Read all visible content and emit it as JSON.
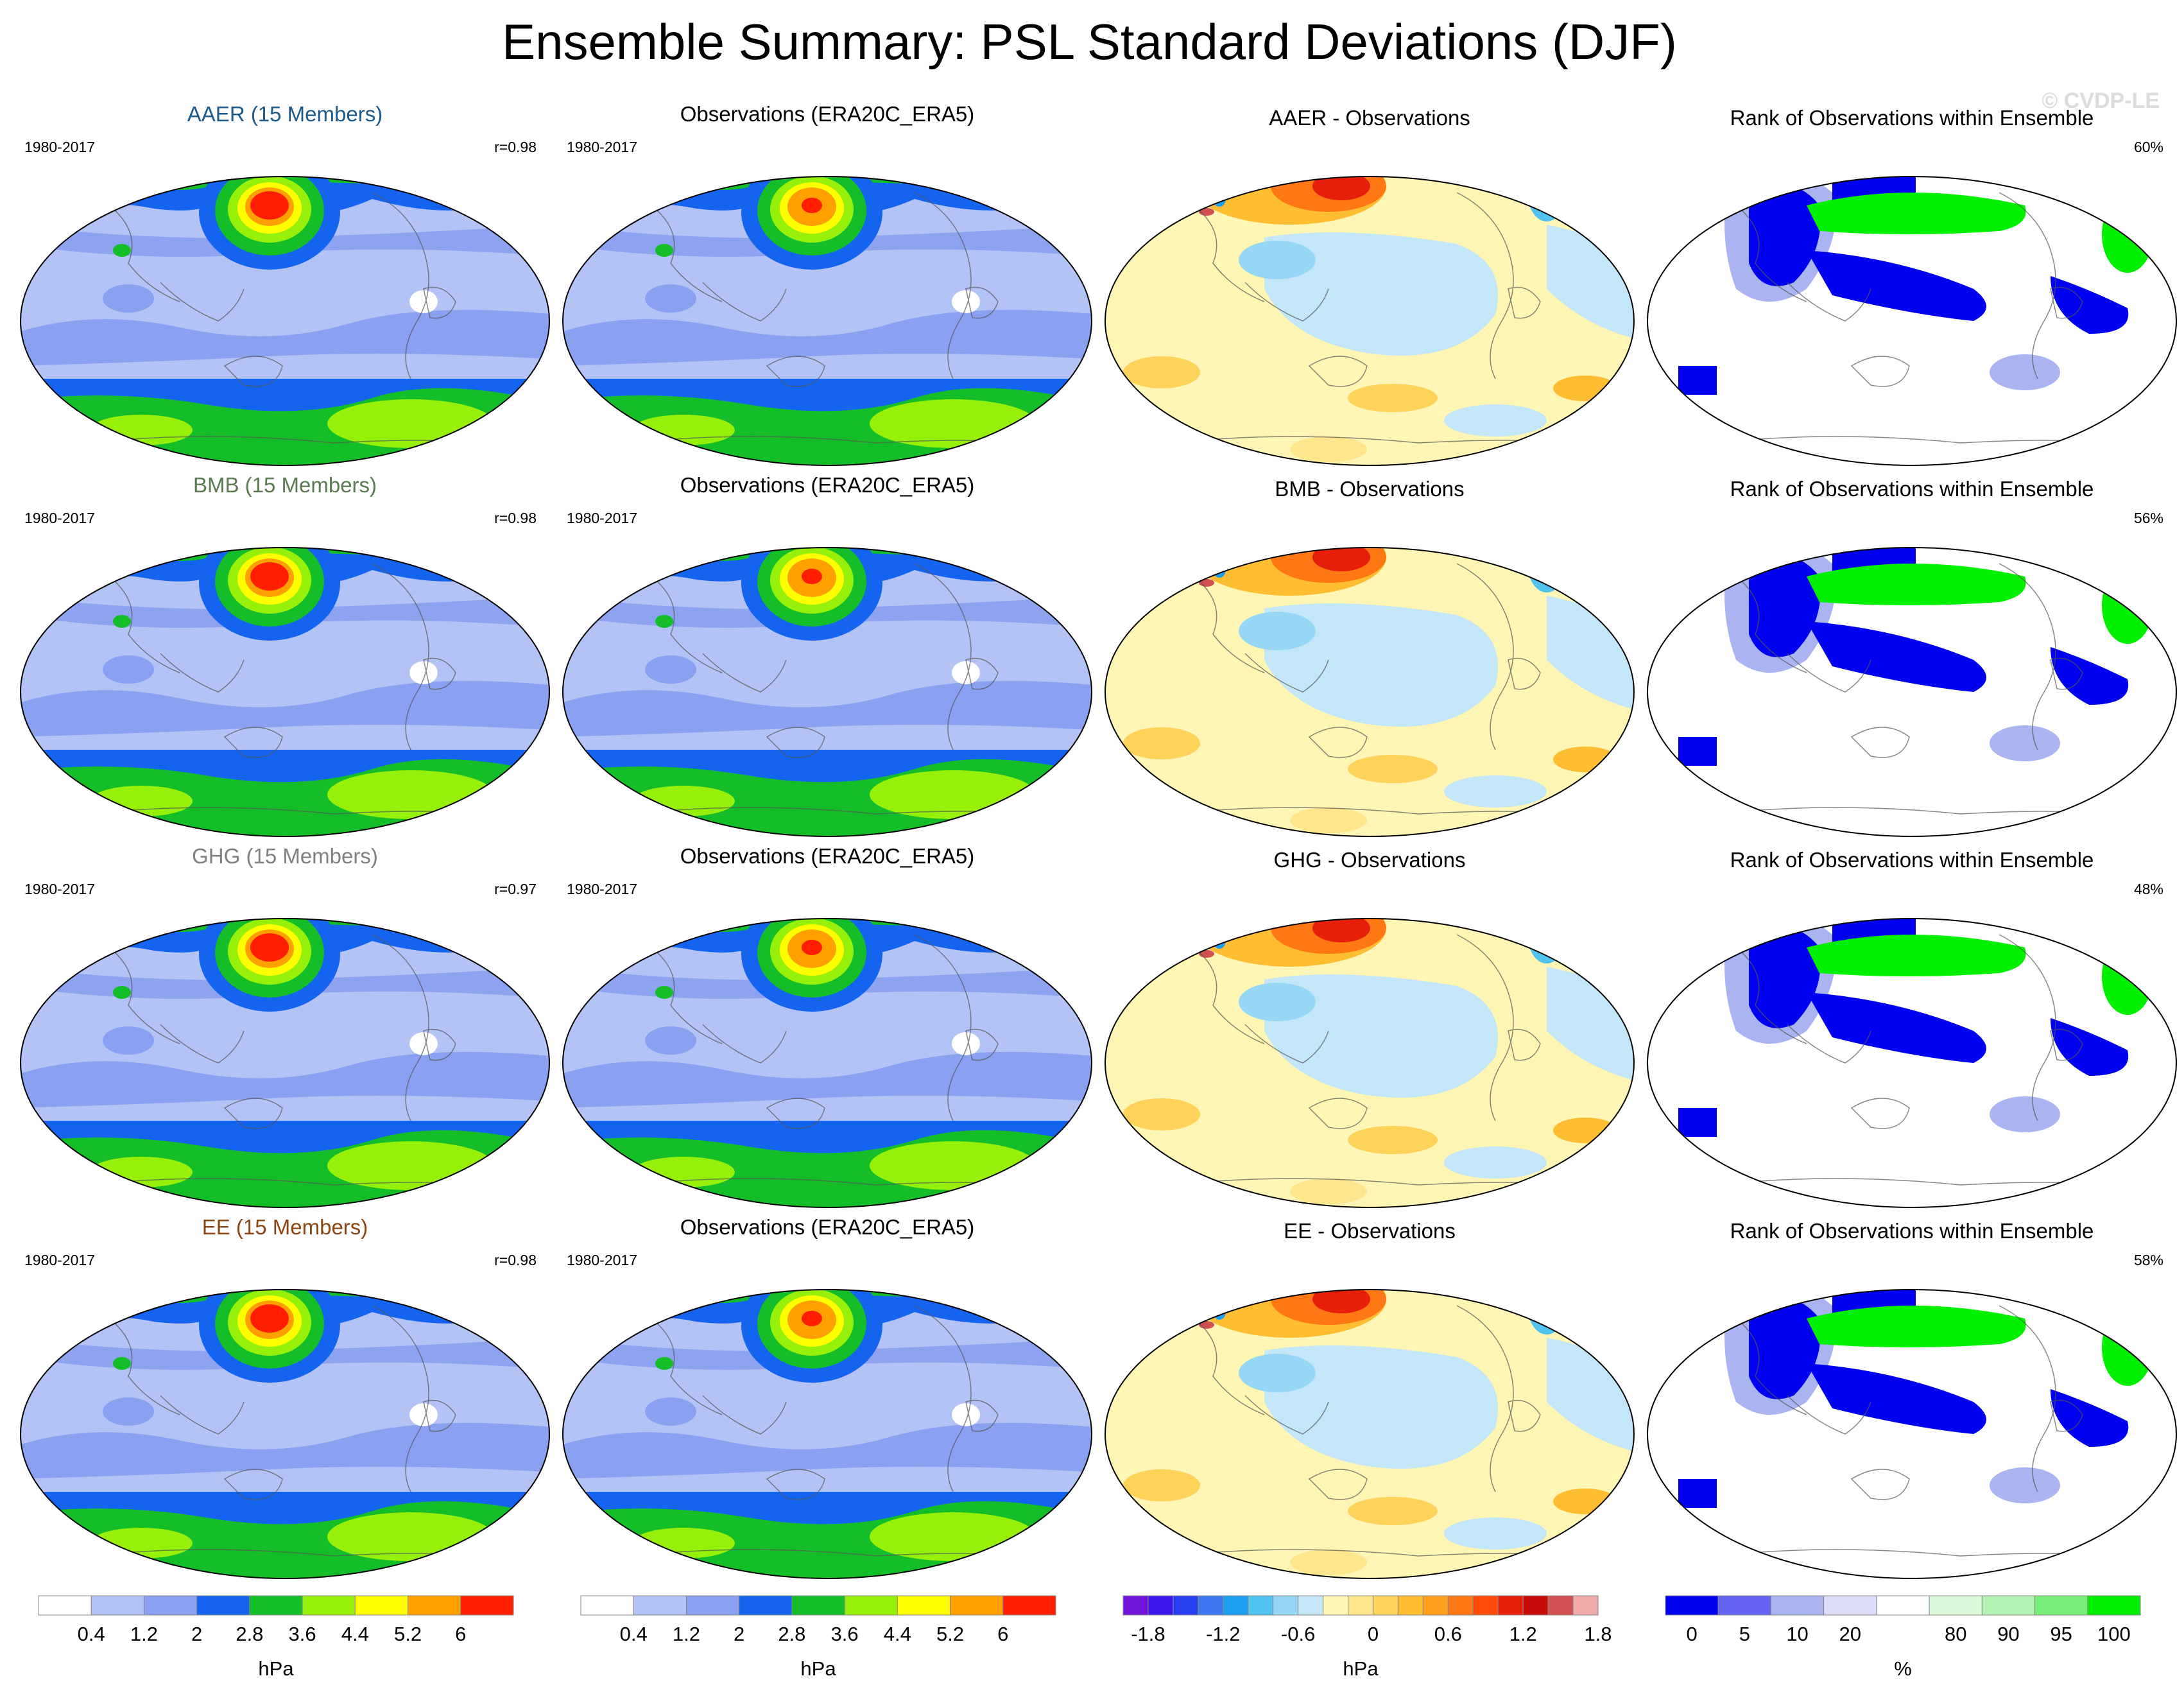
{
  "title": "Ensemble Summary: PSL Standard Deviations (DJF)",
  "watermark": "© CVDP-LE",
  "colors": {
    "sd": [
      "#ffffff",
      "#b4c3f5",
      "#8aa0f0",
      "#1464f0",
      "#14be28",
      "#96f00a",
      "#ffff00",
      "#ffa000",
      "#ff1e00"
    ],
    "diff_cold": [
      "#6e14dc",
      "#3c14f0",
      "#283cf0",
      "#3c78f0",
      "#1ea0f0",
      "#50c3f0",
      "#96d7f5",
      "#c3e6f8"
    ],
    "diff_warm": [
      "#fff5b4",
      "#ffe68c",
      "#ffd25a",
      "#ffbe32",
      "#ffa01e",
      "#ff7814",
      "#ff4b0a",
      "#e61e0a",
      "#c80a0a",
      "#d25050",
      "#f0aaaa"
    ],
    "rank": [
      "#0000f0",
      "#6464f0",
      "#aab4f0",
      "#dcdcf8",
      "#ffffff",
      "#dcfadc",
      "#b4f5b4",
      "#78f078",
      "#00f000"
    ]
  },
  "rows": [
    {
      "experiment": "AAER (15 Members)",
      "experiment_color": "#1e5a8c",
      "period": "1980-2017",
      "pattern_corr": "r=0.98",
      "obs_title": "Observations (ERA20C_ERA5)",
      "obs_period": "1980-2017",
      "diff_title": "AAER - Observations",
      "rank_title": "Rank of Observations within Ensemble",
      "rank_pct": "60%"
    },
    {
      "experiment": "BMB (15 Members)",
      "experiment_color": "#5a7a50",
      "period": "1980-2017",
      "pattern_corr": "r=0.98",
      "obs_title": "Observations (ERA20C_ERA5)",
      "obs_period": "1980-2017",
      "diff_title": "BMB - Observations",
      "rank_title": "Rank of Observations within Ensemble",
      "rank_pct": "56%"
    },
    {
      "experiment": "GHG (15 Members)",
      "experiment_color": "#808080",
      "period": "1980-2017",
      "pattern_corr": "r=0.97",
      "obs_title": "Observations (ERA20C_ERA5)",
      "obs_period": "1980-2017",
      "diff_title": "GHG - Observations",
      "rank_title": "Rank of Observations within Ensemble",
      "rank_pct": "48%"
    },
    {
      "experiment": "EE (15 Members)",
      "experiment_color": "#8b4513",
      "period": "1980-2017",
      "pattern_corr": "r=0.98",
      "obs_title": "Observations (ERA20C_ERA5)",
      "obs_period": "1980-2017",
      "diff_title": "EE - Observations",
      "rank_title": "Rank of Observations within Ensemble",
      "rank_pct": "58%"
    }
  ],
  "colorbars": {
    "sd": {
      "labels": [
        "0.4",
        "1.2",
        "2",
        "2.8",
        "3.6",
        "4.4",
        "5.2",
        "6"
      ],
      "unit": "hPa"
    },
    "diff": {
      "labels": [
        "-1.8",
        "-1.2",
        "-0.6",
        "0",
        "0.6",
        "1.2",
        "1.8"
      ],
      "unit": "hPa"
    },
    "rank": {
      "labels": [
        "0",
        "5",
        "10",
        "20",
        "80",
        "90",
        "95",
        "100"
      ],
      "unit": "%"
    }
  }
}
